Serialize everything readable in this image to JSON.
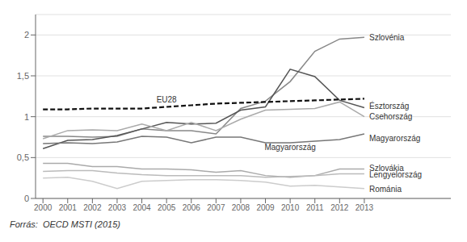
{
  "chart_data": {
    "type": "line",
    "footer": "Forrás:  OECD MSTI (2015)",
    "x": [
      2000,
      2001,
      2002,
      2003,
      2004,
      2005,
      2006,
      2007,
      2008,
      2009,
      2010,
      2011,
      2012,
      2013
    ],
    "series": [
      {
        "name": "Szlovénia",
        "color": "#888888",
        "line_style": "solid",
        "values": [
          0.76,
          0.76,
          0.75,
          0.76,
          0.85,
          0.83,
          0.83,
          0.79,
          1.1,
          1.19,
          1.43,
          1.8,
          1.95,
          1.97
        ]
      },
      {
        "name": "Észtország",
        "color": "#555555",
        "line_style": "solid",
        "values": [
          0.61,
          0.71,
          0.72,
          0.77,
          0.85,
          0.93,
          0.91,
          0.92,
          1.08,
          1.12,
          1.58,
          1.49,
          1.2,
          1.11
        ]
      },
      {
        "name": "Csehország",
        "color": "#aaaaaa",
        "line_style": "solid",
        "values": [
          0.73,
          0.83,
          0.84,
          0.83,
          0.91,
          0.83,
          0.93,
          0.83,
          0.97,
          1.08,
          1.09,
          1.1,
          1.18,
          1.0
        ]
      },
      {
        "name": "Magyarország",
        "color": "#777777",
        "line_style": "solid",
        "values": [
          0.67,
          0.68,
          0.67,
          0.69,
          0.76,
          0.75,
          0.68,
          0.75,
          0.75,
          0.68,
          0.68,
          0.7,
          0.72,
          0.79
        ]
      },
      {
        "name": "Szlovákia",
        "color": "#aaaaaa",
        "line_style": "solid",
        "values": [
          0.43,
          0.43,
          0.39,
          0.39,
          0.36,
          0.36,
          0.35,
          0.32,
          0.34,
          0.28,
          0.26,
          0.28,
          0.36,
          0.36
        ]
      },
      {
        "name": "Lengyelország",
        "color": "#bbbbbb",
        "line_style": "solid",
        "values": [
          0.33,
          0.34,
          0.34,
          0.31,
          0.29,
          0.28,
          0.28,
          0.28,
          0.28,
          0.26,
          0.27,
          0.28,
          0.3,
          0.3
        ]
      },
      {
        "name": "Románia",
        "color": "#cccccc",
        "line_style": "solid",
        "values": [
          0.25,
          0.26,
          0.21,
          0.12,
          0.21,
          0.22,
          0.23,
          0.23,
          0.22,
          0.2,
          0.15,
          0.16,
          0.14,
          0.12
        ]
      },
      {
        "name": "EU28",
        "color": "#111111",
        "line_style": "dashed",
        "values": [
          1.09,
          1.09,
          1.1,
          1.1,
          1.1,
          1.12,
          1.14,
          1.16,
          1.17,
          1.18,
          1.19,
          1.2,
          1.21,
          1.22
        ]
      }
    ],
    "annotations": [
      {
        "text": "EU28",
        "x": 2005,
        "y": 1.145,
        "position": "above"
      },
      {
        "text": "Szlovénia",
        "x": 2013.1,
        "y": 1.97,
        "position": "right"
      },
      {
        "text": "Észtország",
        "x": 2013.1,
        "y": 1.13,
        "position": "right"
      },
      {
        "text": "Csehország",
        "x": 2013.1,
        "y": 1.0,
        "position": "right"
      },
      {
        "text": "Magyarország",
        "x": 2013.1,
        "y": 0.74,
        "position": "right"
      },
      {
        "text": "Szlovákia",
        "x": 2013.1,
        "y": 0.375,
        "position": "right"
      },
      {
        "text": "Lengyelország",
        "x": 2013.1,
        "y": 0.295,
        "position": "right"
      },
      {
        "text": "Románia",
        "x": 2013.1,
        "y": 0.115,
        "position": "right"
      },
      {
        "text": "Magyarország",
        "x": 2010,
        "y": 0.695,
        "position": "below"
      }
    ],
    "xlim": [
      1999.7,
      2016.5
    ],
    "xticks": [
      2000,
      2001,
      2002,
      2003,
      2004,
      2005,
      2006,
      2007,
      2008,
      2009,
      2010,
      2011,
      2012,
      2013
    ],
    "ylim": [
      0,
      2.25
    ],
    "yticks": [
      0,
      {
        "value": 0.5,
        "label": "0,5"
      },
      1,
      {
        "value": 1.5,
        "label": "1,5"
      },
      2
    ],
    "grid": true
  }
}
